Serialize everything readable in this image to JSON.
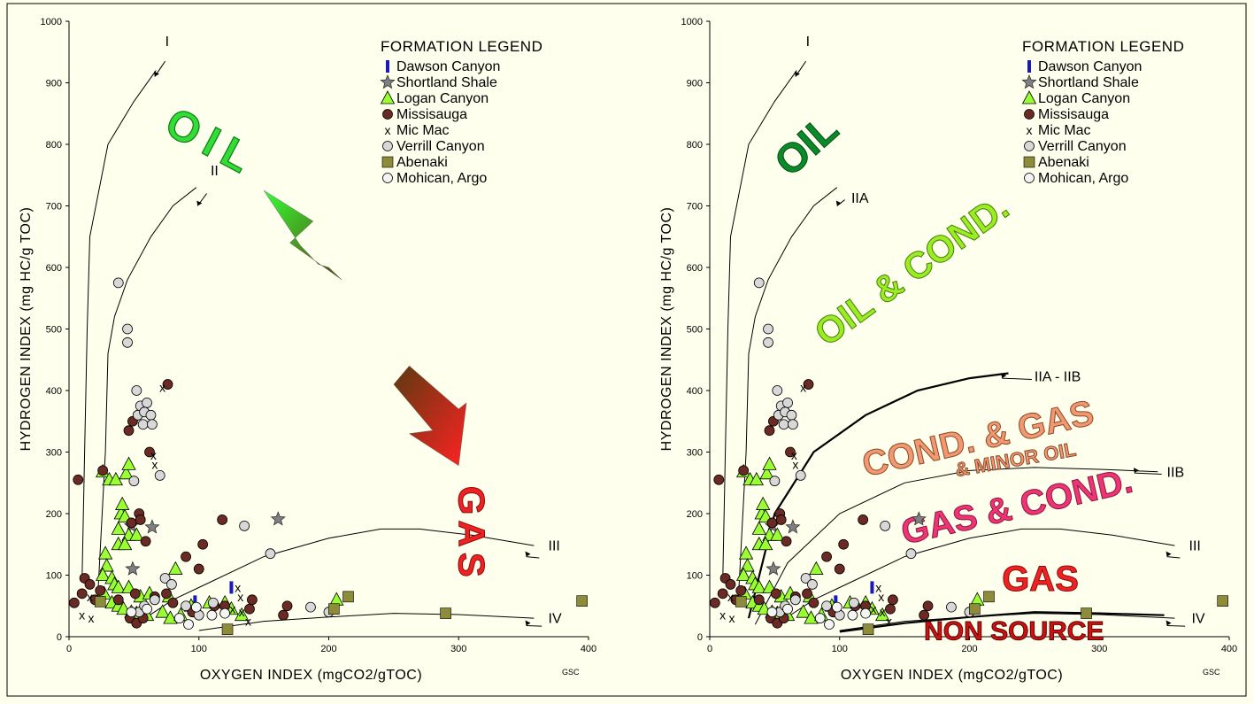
{
  "chart_data": [
    {
      "type": "scatter",
      "title": "",
      "xlabel": "OXYGEN INDEX (mgCO2/gTOC)",
      "ylabel": "HYDROGEN INDEX (mg HC/g TOC)",
      "xlim": [
        0,
        400
      ],
      "ylim": [
        0,
        1000
      ],
      "xticks": [
        "0",
        "100",
        "200",
        "300",
        "400"
      ],
      "yticks": [
        "0",
        "100",
        "200",
        "300",
        "400",
        "500",
        "600",
        "700",
        "800",
        "900",
        "1000"
      ],
      "credit": "GSC",
      "legend_title": "FORMATION LEGEND",
      "legend_placement": "top-right",
      "grid": false,
      "legend": [
        {
          "name": "Dawson Canyon",
          "marker": "bar",
          "color": "#1A1AB8"
        },
        {
          "name": "Shortland Shale",
          "marker": "star",
          "color": "#808080"
        },
        {
          "name": "Logan Canyon",
          "marker": "triangle",
          "color": "#99FF33"
        },
        {
          "name": "Missisauga",
          "marker": "circle",
          "color": "#6B2A24"
        },
        {
          "name": "Mic Mac",
          "marker": "x",
          "color": "#000000"
        },
        {
          "name": "Verrill Canyon",
          "marker": "circle",
          "color": "#D8D8D8"
        },
        {
          "name": "Abenaki",
          "marker": "square",
          "color": "#8C8C3A"
        },
        {
          "name": "Mohican, Argo",
          "marker": "circle",
          "color": "#F4F4F4"
        }
      ],
      "curve_labels": [
        "I",
        "II",
        "III",
        "IV"
      ],
      "zone_labels": [
        {
          "text": "OIL",
          "color": "#33DD33"
        },
        {
          "text": "GAS",
          "color": "#EE2222"
        }
      ],
      "arrows": [
        {
          "name": "oil-arrow",
          "direction": "up-left",
          "colors": [
            "#5C3A10",
            "#33FF33"
          ]
        },
        {
          "name": "gas-arrow",
          "direction": "down-right",
          "colors": [
            "#5C3A10",
            "#FF2222"
          ]
        }
      ],
      "series": [
        {
          "name": "Dawson Canyon",
          "points": [
            [
              97,
              57
            ],
            [
              125,
              80
            ]
          ]
        },
        {
          "name": "Shortland Shale",
          "points": [
            [
              48,
              180
            ],
            [
              64,
              178
            ],
            [
              49,
              110
            ],
            [
              161,
              191
            ]
          ]
        },
        {
          "name": "Logan Canyon",
          "points": [
            [
              26,
              268
            ],
            [
              31,
              255
            ],
            [
              36,
              255
            ],
            [
              44,
              265
            ],
            [
              46,
              280
            ],
            [
              38,
              175
            ],
            [
              40,
              200
            ],
            [
              41,
              215
            ],
            [
              43,
              195
            ],
            [
              46,
              165
            ],
            [
              52,
              165
            ],
            [
              38,
              150
            ],
            [
              43,
              150
            ],
            [
              28,
              135
            ],
            [
              29,
              115
            ],
            [
              26,
              100
            ],
            [
              33,
              95
            ],
            [
              35,
              85
            ],
            [
              38,
              80
            ],
            [
              46,
              80
            ],
            [
              55,
              65
            ],
            [
              62,
              70
            ],
            [
              77,
              65
            ],
            [
              82,
              110
            ],
            [
              27,
              70
            ],
            [
              33,
              55
            ],
            [
              38,
              50
            ],
            [
              42,
              45
            ],
            [
              48,
              40
            ],
            [
              52,
              38
            ],
            [
              60,
              35
            ],
            [
              72,
              40
            ],
            [
              78,
              30
            ],
            [
              86,
              35
            ],
            [
              94,
              50
            ],
            [
              108,
              55
            ],
            [
              120,
              55
            ],
            [
              125,
              45
            ],
            [
              133,
              35
            ],
            [
              206,
              60
            ]
          ]
        },
        {
          "name": "Missisauga",
          "points": [
            [
              7,
              255
            ],
            [
              26,
              270
            ],
            [
              46,
              335
            ],
            [
              49,
              350
            ],
            [
              54,
              200
            ],
            [
              62,
              300
            ],
            [
              76,
              410
            ],
            [
              48,
              185
            ],
            [
              55,
              190
            ],
            [
              59,
              155
            ],
            [
              90,
              130
            ],
            [
              103,
              150
            ],
            [
              118,
              190
            ],
            [
              100,
              110
            ],
            [
              120,
              50
            ],
            [
              12,
              95
            ],
            [
              16,
              85
            ],
            [
              24,
              75
            ],
            [
              38,
              60
            ],
            [
              51,
              70
            ],
            [
              75,
              70
            ],
            [
              10,
              70
            ],
            [
              20,
              60
            ],
            [
              47,
              30
            ],
            [
              52,
              22
            ],
            [
              57,
              30
            ],
            [
              66,
              65
            ],
            [
              80,
              55
            ],
            [
              95,
              40
            ],
            [
              112,
              50
            ],
            [
              139,
              45
            ],
            [
              141,
              60
            ],
            [
              165,
              35
            ],
            [
              168,
              50
            ],
            [
              4,
              55
            ]
          ]
        },
        {
          "name": "Mic Mac",
          "points": [
            [
              72,
              405
            ],
            [
              65,
              295
            ],
            [
              66,
              280
            ],
            [
              16,
              65
            ],
            [
              10,
              35
            ],
            [
              17,
              30
            ],
            [
              130,
              80
            ],
            [
              132,
              65
            ],
            [
              138,
              25
            ],
            [
              126,
              45
            ],
            [
              133,
              40
            ]
          ]
        },
        {
          "name": "Verrill Canyon",
          "points": [
            [
              38,
              575
            ],
            [
              45,
              500
            ],
            [
              45,
              478
            ],
            [
              52,
              400
            ],
            [
              55,
              375
            ],
            [
              60,
              380
            ],
            [
              53,
              360
            ],
            [
              58,
              365
            ],
            [
              63,
              360
            ],
            [
              57,
              345
            ],
            [
              64,
              345
            ],
            [
              70,
              262
            ],
            [
              50,
              253
            ],
            [
              74,
              95
            ],
            [
              79,
              85
            ],
            [
              135,
              180
            ],
            [
              155,
              135
            ],
            [
              186,
              48
            ],
            [
              200,
              40
            ],
            [
              54,
              40
            ],
            [
              58,
              50
            ],
            [
              66,
              60
            ],
            [
              90,
              50
            ],
            [
              100,
              35
            ],
            [
              111,
              55
            ]
          ]
        },
        {
          "name": "Abenaki",
          "points": [
            [
              24,
              57
            ],
            [
              122,
              12
            ],
            [
              204,
              45
            ],
            [
              215,
              65
            ],
            [
              290,
              38
            ],
            [
              395,
              58
            ]
          ]
        },
        {
          "name": "Mohican, Argo",
          "points": [
            [
              48,
              40
            ],
            [
              60,
              45
            ],
            [
              85,
              30
            ],
            [
              92,
              20
            ],
            [
              110,
              35
            ],
            [
              98,
              48
            ],
            [
              120,
              38
            ]
          ]
        }
      ]
    },
    {
      "type": "scatter",
      "title": "",
      "xlabel": "OXYGEN INDEX (mgCO2/gTOC)",
      "ylabel": "HYDROGEN INDEX (mg HC/g TOC)",
      "xlim": [
        0,
        400
      ],
      "ylim": [
        0,
        1000
      ],
      "xticks": [
        "0",
        "100",
        "200",
        "300",
        "400"
      ],
      "yticks": [
        "0",
        "100",
        "200",
        "300",
        "400",
        "500",
        "600",
        "700",
        "800",
        "900",
        "1000"
      ],
      "credit": "GSC",
      "legend_title": "FORMATION LEGEND",
      "legend_placement": "top-right",
      "grid": false,
      "curve_labels": [
        "I",
        "IIA",
        "IIA - IIB",
        "IIB",
        "III",
        "IV"
      ],
      "zone_labels": [
        {
          "text": "OIL",
          "color": "#0B8A2A"
        },
        {
          "text": "OIL & COND.",
          "color": "#99EE22"
        },
        {
          "text": "COND. & GAS",
          "color": "#F29870"
        },
        {
          "text": "& MINOR OIL",
          "color": "#F29870"
        },
        {
          "text": "GAS & COND.",
          "color": "#EE3377"
        },
        {
          "text": "GAS",
          "color": "#EE2222"
        },
        {
          "text": "NON SOURCE",
          "color": "#CC1111"
        }
      ]
    }
  ]
}
